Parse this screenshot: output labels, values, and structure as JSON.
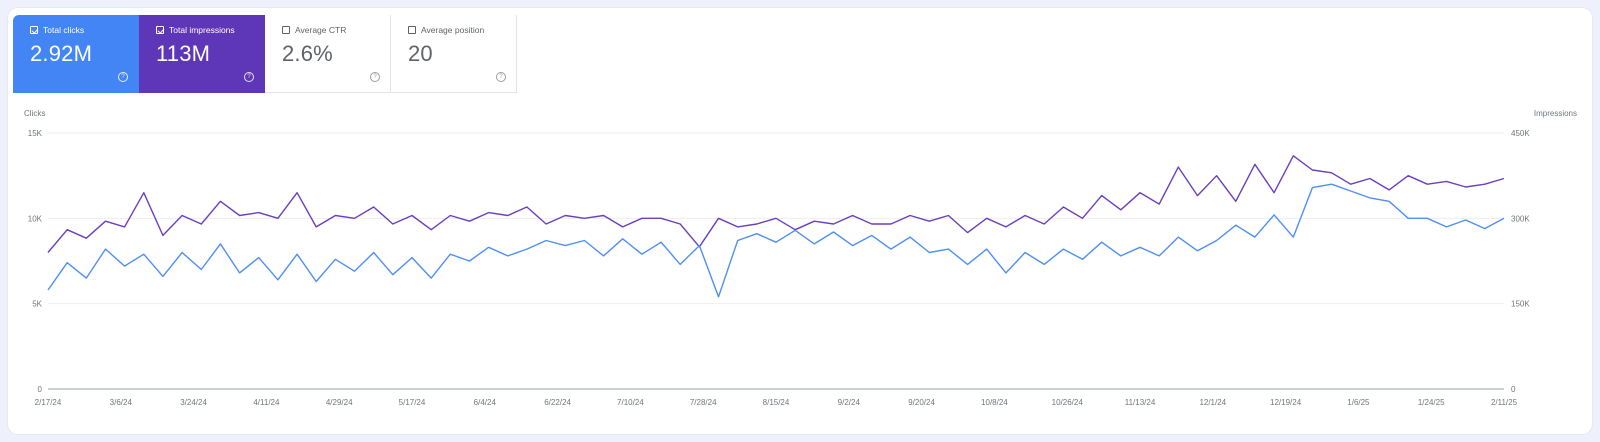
{
  "metrics": [
    {
      "label": "Total clicks",
      "value": "2.92M",
      "selected": true,
      "color": "#4385f4",
      "icon": "question-circle-icon"
    },
    {
      "label": "Total impressions",
      "value": "113M",
      "selected": true,
      "color": "#5e36b8",
      "icon": "question-circle-icon"
    },
    {
      "label": "Average CTR",
      "value": "2.6%",
      "selected": false,
      "icon": "question-circle-icon"
    },
    {
      "label": "Average position",
      "value": "20",
      "selected": false,
      "icon": "question-circle-icon"
    }
  ],
  "chart_data": {
    "type": "line",
    "left_axis": {
      "label": "Clicks",
      "ticks": [
        "0",
        "5K",
        "10K",
        "15K"
      ],
      "range": [
        0,
        15000
      ]
    },
    "right_axis": {
      "label": "Impressions",
      "ticks": [
        "0",
        "150K",
        "300K",
        "450K"
      ],
      "range": [
        0,
        450000
      ]
    },
    "x_tick_labels": [
      "2/17/24",
      "3/6/24",
      "3/24/24",
      "4/11/24",
      "4/29/24",
      "5/17/24",
      "6/4/24",
      "6/22/24",
      "7/10/24",
      "7/28/24",
      "8/15/24",
      "9/2/24",
      "9/20/24",
      "10/8/24",
      "10/26/24",
      "11/13/24",
      "12/1/24",
      "12/19/24",
      "1/6/25",
      "1/24/25",
      "2/11/25"
    ],
    "grid": true,
    "series": [
      {
        "name": "Clicks",
        "axis": "left",
        "color": "#4f8ff4",
        "values": [
          5800,
          7400,
          6500,
          8200,
          7200,
          7900,
          6600,
          8000,
          7000,
          8500,
          6800,
          7700,
          6400,
          7900,
          6300,
          7600,
          6900,
          8000,
          6700,
          7700,
          6500,
          7900,
          7500,
          8300,
          7800,
          8200,
          8700,
          8400,
          8700,
          7800,
          8800,
          7900,
          8600,
          7300,
          8400,
          5400,
          8700,
          9100,
          8600,
          9300,
          8500,
          9200,
          8400,
          9000,
          8200,
          8900,
          8000,
          8200,
          7300,
          8200,
          6800,
          8000,
          7300,
          8200,
          7600,
          8600,
          7800,
          8300,
          7800,
          8900,
          8100,
          8700,
          9600,
          8900,
          10200,
          8900,
          11800,
          12000,
          11600,
          11200,
          11000,
          10000,
          10000,
          9500,
          9900,
          9400,
          10000
        ]
      },
      {
        "name": "Impressions",
        "axis": "right",
        "color": "#6a3fc0",
        "values": [
          240000,
          280000,
          265000,
          295000,
          285000,
          345000,
          270000,
          305000,
          290000,
          330000,
          305000,
          310000,
          300000,
          345000,
          285000,
          305000,
          300000,
          320000,
          290000,
          305000,
          280000,
          305000,
          295000,
          310000,
          305000,
          320000,
          290000,
          305000,
          300000,
          305000,
          285000,
          300000,
          300000,
          290000,
          250000,
          300000,
          285000,
          290000,
          300000,
          280000,
          295000,
          290000,
          305000,
          290000,
          290000,
          305000,
          295000,
          305000,
          275000,
          300000,
          285000,
          305000,
          290000,
          320000,
          300000,
          340000,
          315000,
          345000,
          325000,
          390000,
          340000,
          375000,
          330000,
          395000,
          345000,
          410000,
          385000,
          380000,
          360000,
          370000,
          350000,
          375000,
          360000,
          365000,
          355000,
          360000,
          370000
        ]
      }
    ]
  }
}
